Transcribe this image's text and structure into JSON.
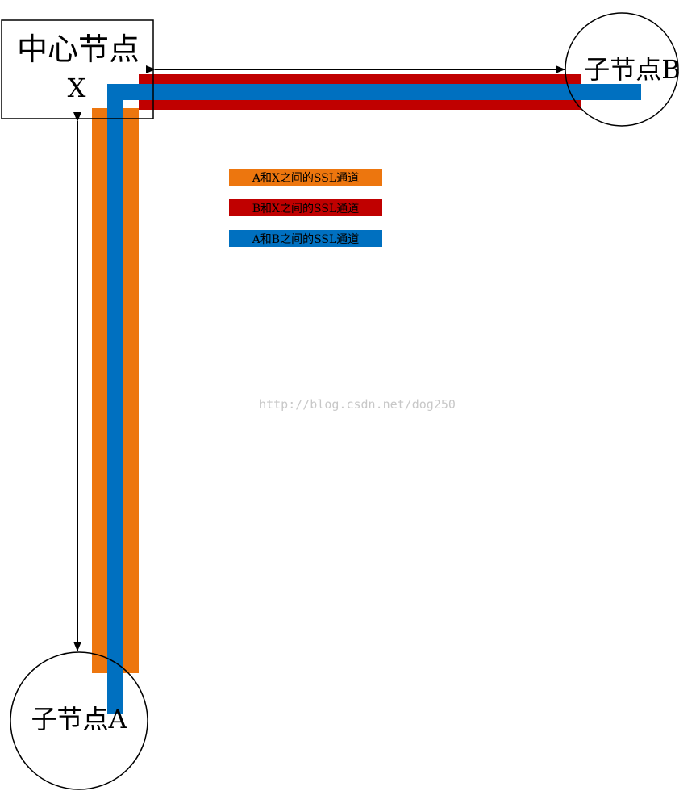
{
  "nodes": {
    "center": {
      "line1": "中心节点",
      "line2": "X"
    },
    "child_b": {
      "label": "子节点B"
    },
    "child_a": {
      "label": "子节点A"
    }
  },
  "legend": [
    {
      "label": "A和X之间的SSL通道",
      "color": "#ed760e"
    },
    {
      "label": "B和X之间的SSL通道",
      "color": "#c00000"
    },
    {
      "label": "A和B之间的SSL通道",
      "color": "#0070c0"
    }
  ],
  "watermark": "http://blog.csdn.net/dog250"
}
